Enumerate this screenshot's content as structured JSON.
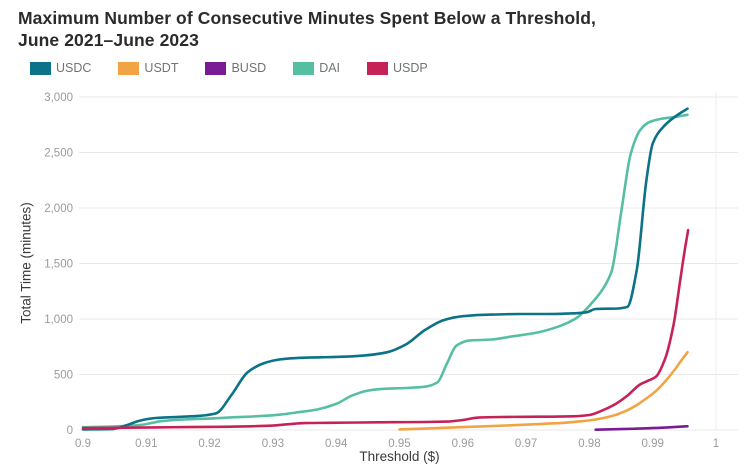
{
  "header": {
    "title": "Maximum Number of Consecutive Minutes Spent Below a Threshold,\nJune 2021–June 2023"
  },
  "legend": [
    {
      "label": "USDC",
      "color": "#0c7287"
    },
    {
      "label": "USDT",
      "color": "#f2a444"
    },
    {
      "label": "BUSD",
      "color": "#7a1b96"
    },
    {
      "label": "DAI",
      "color": "#56bfa3"
    },
    {
      "label": "USDP",
      "color": "#c52257"
    }
  ],
  "chart_data": {
    "type": "line",
    "title": "Maximum Number of Consecutive Minutes Spent Below a Threshold, June 2021–June 2023",
    "xlabel": "Threshold ($)",
    "ylabel": "Total Time (minutes)",
    "xlim": [
      0.9,
      1.0
    ],
    "ylim": [
      0,
      3000
    ],
    "grid": "horizontal",
    "grid_color": "#e8e8e8",
    "tick_color": "#9b9b9b",
    "axis_title_color": "#3a3a3a",
    "legend_position": "top-left",
    "x_ticks": [
      {
        "v": 0.9,
        "label": "0.9"
      },
      {
        "v": 0.91,
        "label": "0.91"
      },
      {
        "v": 0.92,
        "label": "0.92"
      },
      {
        "v": 0.93,
        "label": "0.93"
      },
      {
        "v": 0.94,
        "label": "0.94"
      },
      {
        "v": 0.95,
        "label": "0.95"
      },
      {
        "v": 0.96,
        "label": "0.96"
      },
      {
        "v": 0.97,
        "label": "0.97"
      },
      {
        "v": 0.98,
        "label": "0.98"
      },
      {
        "v": 0.99,
        "label": "0.99"
      },
      {
        "v": 1,
        "label": "1"
      }
    ],
    "y_ticks": [
      {
        "v": 0,
        "label": "0"
      },
      {
        "v": 500,
        "label": "500"
      },
      {
        "v": 1000,
        "label": "1,000"
      },
      {
        "v": 1500,
        "label": "1,500"
      },
      {
        "v": 2000,
        "label": "2,000"
      },
      {
        "v": 2500,
        "label": "2,500"
      },
      {
        "v": 3000,
        "label": "3,000"
      }
    ],
    "series": [
      {
        "name": "DAI",
        "color": "#56bfa3",
        "points": [
          [
            0.9,
            25
          ],
          [
            0.905,
            32
          ],
          [
            0.909,
            45
          ],
          [
            0.9125,
            80
          ],
          [
            0.916,
            95
          ],
          [
            0.92,
            103
          ],
          [
            0.924,
            115
          ],
          [
            0.928,
            125
          ],
          [
            0.931,
            138
          ],
          [
            0.934,
            160
          ],
          [
            0.937,
            185
          ],
          [
            0.94,
            235
          ],
          [
            0.9425,
            310
          ],
          [
            0.945,
            355
          ],
          [
            0.948,
            372
          ],
          [
            0.951,
            378
          ],
          [
            0.954,
            390
          ],
          [
            0.956,
            430
          ],
          [
            0.9575,
            600
          ],
          [
            0.959,
            760
          ],
          [
            0.961,
            805
          ],
          [
            0.9645,
            815
          ],
          [
            0.968,
            845
          ],
          [
            0.9715,
            875
          ],
          [
            0.975,
            930
          ],
          [
            0.978,
            1010
          ],
          [
            0.98,
            1120
          ],
          [
            0.982,
            1260
          ],
          [
            0.9835,
            1430
          ],
          [
            0.985,
            1950
          ],
          [
            0.9865,
            2480
          ],
          [
            0.988,
            2700
          ],
          [
            0.9895,
            2775
          ],
          [
            0.9915,
            2805
          ],
          [
            0.9935,
            2820
          ],
          [
            0.9955,
            2840
          ]
        ]
      },
      {
        "name": "USDT",
        "color": "#f2a444",
        "points": [
          [
            0.95,
            5
          ],
          [
            0.9545,
            14
          ],
          [
            0.959,
            24
          ],
          [
            0.9635,
            33
          ],
          [
            0.968,
            43
          ],
          [
            0.9725,
            55
          ],
          [
            0.976,
            65
          ],
          [
            0.979,
            80
          ],
          [
            0.981,
            95
          ],
          [
            0.9835,
            125
          ],
          [
            0.9855,
            165
          ],
          [
            0.9875,
            225
          ],
          [
            0.989,
            285
          ],
          [
            0.9905,
            350
          ],
          [
            0.992,
            440
          ],
          [
            0.9935,
            545
          ],
          [
            0.9945,
            625
          ],
          [
            0.9955,
            700
          ]
        ]
      },
      {
        "name": "BUSD",
        "color": "#7a1b96",
        "points": [
          [
            0.981,
            3
          ],
          [
            0.985,
            8
          ],
          [
            0.989,
            15
          ],
          [
            0.992,
            22
          ],
          [
            0.9955,
            33
          ]
        ]
      },
      {
        "name": "USDC",
        "color": "#0c7287",
        "points": [
          [
            0.9,
            5
          ],
          [
            0.9045,
            8
          ],
          [
            0.907,
            45
          ],
          [
            0.909,
            85
          ],
          [
            0.9115,
            108
          ],
          [
            0.915,
            118
          ],
          [
            0.9185,
            128
          ],
          [
            0.921,
            150
          ],
          [
            0.9235,
            320
          ],
          [
            0.926,
            520
          ],
          [
            0.9285,
            600
          ],
          [
            0.931,
            635
          ],
          [
            0.934,
            650
          ],
          [
            0.9375,
            655
          ],
          [
            0.941,
            660
          ],
          [
            0.9445,
            672
          ],
          [
            0.948,
            700
          ],
          [
            0.951,
            770
          ],
          [
            0.954,
            900
          ],
          [
            0.957,
            990
          ],
          [
            0.96,
            1025
          ],
          [
            0.9645,
            1040
          ],
          [
            0.969,
            1045
          ],
          [
            0.9735,
            1045
          ],
          [
            0.977,
            1050
          ],
          [
            0.9795,
            1060
          ],
          [
            0.981,
            1090
          ],
          [
            0.9845,
            1095
          ],
          [
            0.986,
            1110
          ],
          [
            0.9875,
            1450
          ],
          [
            0.989,
            2250
          ],
          [
            0.99,
            2580
          ],
          [
            0.9915,
            2720
          ],
          [
            0.993,
            2800
          ],
          [
            0.9945,
            2860
          ],
          [
            0.9955,
            2895
          ]
        ]
      },
      {
        "name": "USDP",
        "color": "#c52257",
        "points": [
          [
            0.9,
            18
          ],
          [
            0.9055,
            20
          ],
          [
            0.911,
            23
          ],
          [
            0.9165,
            26
          ],
          [
            0.922,
            29
          ],
          [
            0.9265,
            33
          ],
          [
            0.93,
            40
          ],
          [
            0.9325,
            52
          ],
          [
            0.935,
            62
          ],
          [
            0.939,
            65
          ],
          [
            0.944,
            68
          ],
          [
            0.949,
            70
          ],
          [
            0.954,
            72
          ],
          [
            0.9575,
            76
          ],
          [
            0.96,
            90
          ],
          [
            0.9625,
            112
          ],
          [
            0.966,
            117
          ],
          [
            0.97,
            119
          ],
          [
            0.974,
            120
          ],
          [
            0.9775,
            123
          ],
          [
            0.98,
            135
          ],
          [
            0.982,
            175
          ],
          [
            0.984,
            230
          ],
          [
            0.986,
            310
          ],
          [
            0.988,
            410
          ],
          [
            0.9895,
            450
          ],
          [
            0.9905,
            480
          ],
          [
            0.992,
            650
          ],
          [
            0.9933,
            950
          ],
          [
            0.9943,
            1330
          ],
          [
            0.995,
            1600
          ],
          [
            0.9956,
            1800
          ]
        ]
      }
    ]
  }
}
